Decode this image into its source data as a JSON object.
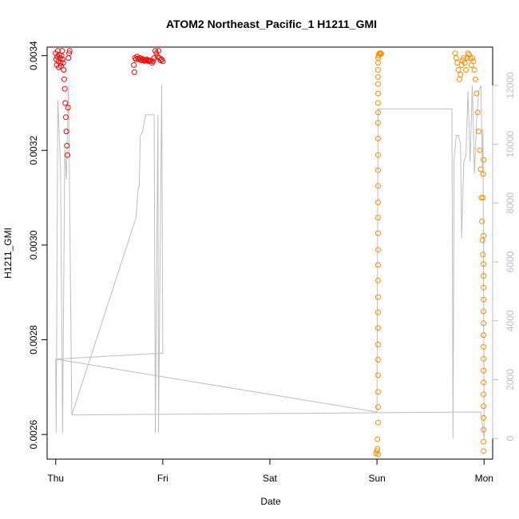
{
  "chart_data": {
    "type": "scatter",
    "title": "ATOM2 Northeast_Pacific_1 H1211_GMI",
    "xlabel": "Date",
    "ylabel": "H1211_GMI",
    "x_ticks": [
      {
        "label": "Thu",
        "day": 0
      },
      {
        "label": "Fri",
        "day": 1
      },
      {
        "label": "Sat",
        "day": 2
      },
      {
        "label": "Sun",
        "day": 3
      },
      {
        "label": "Mon",
        "day": 4
      }
    ],
    "xlim_days": [
      -0.08,
      4.08
    ],
    "ylim": [
      0.002548,
      0.003418
    ],
    "y_ticks": [
      0.0026,
      0.0028,
      0.003,
      0.0032,
      0.0034
    ],
    "y_tick_labels": [
      "0.0026",
      "0.0028",
      "0.0030",
      "0.0032",
      "0.0034"
    ],
    "y2lim": [
      -700,
      13300
    ],
    "y2_ticks": [
      0,
      2000,
      4000,
      6000,
      8000,
      10000,
      12000
    ],
    "y2_tick_labels": [
      "0",
      "2000",
      "4000",
      "6000",
      "8000",
      "10000",
      "12000"
    ],
    "colors": {
      "series1": "#ff0000",
      "series2": "#ff8c00",
      "altitude": "#bebebe",
      "axis": "#000000"
    },
    "series": [
      {
        "color": "#ff0000",
        "points": [
          [
            0.0,
            0.003405
          ],
          [
            0.005,
            0.003392
          ],
          [
            0.01,
            0.00338
          ],
          [
            0.015,
            0.003398
          ],
          [
            0.02,
            0.00341
          ],
          [
            0.025,
            0.003388
          ],
          [
            0.03,
            0.003375
          ],
          [
            0.035,
            0.003402
          ],
          [
            0.04,
            0.003395
          ],
          [
            0.045,
            0.003384
          ],
          [
            0.05,
            0.003378
          ],
          [
            0.055,
            0.0034
          ],
          [
            0.06,
            0.00341
          ],
          [
            0.065,
            0.003392
          ],
          [
            0.07,
            0.003385
          ],
          [
            0.075,
            0.00337
          ],
          [
            0.08,
            0.00335
          ],
          [
            0.085,
            0.00333
          ],
          [
            0.09,
            0.0033
          ],
          [
            0.095,
            0.00327
          ],
          [
            0.1,
            0.00324
          ],
          [
            0.105,
            0.00321
          ],
          [
            0.11,
            0.00319
          ],
          [
            0.115,
            0.00329
          ],
          [
            0.12,
            0.003395
          ],
          [
            0.125,
            0.003405
          ],
          [
            0.13,
            0.00341
          ],
          [
            0.73,
            0.00338
          ],
          [
            0.735,
            0.003365
          ],
          [
            0.74,
            0.003395
          ],
          [
            0.75,
            0.003392
          ],
          [
            0.76,
            0.003398
          ],
          [
            0.77,
            0.003394
          ],
          [
            0.78,
            0.003392
          ],
          [
            0.79,
            0.003395
          ],
          [
            0.8,
            0.00339
          ],
          [
            0.81,
            0.003393
          ],
          [
            0.82,
            0.003391
          ],
          [
            0.83,
            0.003389
          ],
          [
            0.84,
            0.00339
          ],
          [
            0.85,
            0.003392
          ],
          [
            0.86,
            0.00339
          ],
          [
            0.87,
            0.003388
          ],
          [
            0.88,
            0.00339
          ],
          [
            0.89,
            0.003389
          ],
          [
            0.9,
            0.003385
          ],
          [
            0.91,
            0.003388
          ],
          [
            0.92,
            0.003395
          ],
          [
            0.93,
            0.00341
          ],
          [
            0.94,
            0.003405
          ],
          [
            0.95,
            0.003398
          ],
          [
            0.96,
            0.00341
          ],
          [
            0.97,
            0.003395
          ],
          [
            0.98,
            0.00339
          ],
          [
            0.99,
            0.003392
          ],
          [
            1.0,
            0.003388
          ]
        ]
      },
      {
        "color": "#ff8c00",
        "points": [
          [
            2.99,
            0.00256
          ],
          [
            3.0,
            0.002565
          ],
          [
            3.005,
            0.00257
          ],
          [
            3.01,
            0.002558
          ],
          [
            3.005,
            0.00259
          ],
          [
            3.01,
            0.002625
          ],
          [
            3.01,
            0.002658
          ],
          [
            3.01,
            0.00269
          ],
          [
            3.01,
            0.002725
          ],
          [
            3.01,
            0.002758
          ],
          [
            3.01,
            0.00279
          ],
          [
            3.01,
            0.002825
          ],
          [
            3.01,
            0.002858
          ],
          [
            3.01,
            0.00289
          ],
          [
            3.01,
            0.002925
          ],
          [
            3.01,
            0.002958
          ],
          [
            3.01,
            0.00299
          ],
          [
            3.01,
            0.003025
          ],
          [
            3.01,
            0.003058
          ],
          [
            3.01,
            0.00309
          ],
          [
            3.01,
            0.003125
          ],
          [
            3.01,
            0.003158
          ],
          [
            3.01,
            0.00319
          ],
          [
            3.01,
            0.003225
          ],
          [
            3.01,
            0.003258
          ],
          [
            3.01,
            0.00328
          ],
          [
            3.01,
            0.0033
          ],
          [
            3.01,
            0.00332
          ],
          [
            3.01,
            0.00334
          ],
          [
            3.01,
            0.003355
          ],
          [
            3.01,
            0.00337
          ],
          [
            3.01,
            0.003385
          ],
          [
            3.01,
            0.003395
          ],
          [
            3.015,
            0.0034
          ],
          [
            3.02,
            0.003404
          ],
          [
            3.025,
            0.003405
          ],
          [
            3.03,
            0.003403
          ],
          [
            3.035,
            0.003405
          ],
          [
            3.04,
            0.003404
          ],
          [
            3.73,
            0.003405
          ],
          [
            3.74,
            0.003395
          ],
          [
            3.75,
            0.003385
          ],
          [
            3.76,
            0.00337
          ],
          [
            3.77,
            0.00335
          ],
          [
            3.78,
            0.00336
          ],
          [
            3.79,
            0.00338
          ],
          [
            3.8,
            0.00339
          ],
          [
            3.81,
            0.003395
          ],
          [
            3.82,
            0.003385
          ],
          [
            3.83,
            0.00337
          ],
          [
            3.84,
            0.003395
          ],
          [
            3.85,
            0.003405
          ],
          [
            3.86,
            0.003402
          ],
          [
            3.87,
            0.003394
          ],
          [
            3.88,
            0.00338
          ],
          [
            3.89,
            0.003395
          ],
          [
            3.9,
            0.003388
          ],
          [
            3.91,
            0.00337
          ],
          [
            3.92,
            0.00335
          ],
          [
            3.93,
            0.00332
          ],
          [
            3.94,
            0.00328
          ],
          [
            3.95,
            0.00324
          ],
          [
            3.96,
            0.0032
          ],
          [
            3.97,
            0.00316
          ],
          [
            3.975,
            0.0031
          ],
          [
            3.98,
            0.00305
          ],
          [
            3.985,
            0.00301
          ],
          [
            3.99,
            0.00298
          ],
          [
            3.995,
            0.00302
          ],
          [
            3.99,
            0.0031
          ],
          [
            3.992,
            0.00315
          ],
          [
            3.995,
            0.00318
          ],
          [
            3.995,
            0.00296
          ],
          [
            3.995,
            0.002935
          ],
          [
            3.995,
            0.00291
          ],
          [
            3.995,
            0.002885
          ],
          [
            3.995,
            0.00286
          ],
          [
            3.995,
            0.002835
          ],
          [
            3.995,
            0.00281
          ],
          [
            3.995,
            0.002785
          ],
          [
            3.995,
            0.00276
          ],
          [
            3.995,
            0.002735
          ],
          [
            3.995,
            0.00271
          ],
          [
            3.995,
            0.002685
          ],
          [
            3.995,
            0.00266
          ],
          [
            3.995,
            0.002635
          ],
          [
            3.995,
            0.00261
          ],
          [
            3.995,
            0.002585
          ],
          [
            3.995,
            0.002565
          ]
        ]
      }
    ],
    "altitude_series": {
      "color": "#bebebe",
      "points": [
        [
          0.0,
          2700
        ],
        [
          0.005,
          200
        ],
        [
          0.02,
          11500
        ],
        [
          0.045,
          9200
        ],
        [
          0.065,
          200
        ],
        [
          0.085,
          9800
        ],
        [
          0.1,
          8800
        ],
        [
          0.12,
          12000
        ],
        [
          0.15,
          800
        ],
        [
          0.75,
          7500
        ],
        [
          0.77,
          8500
        ],
        [
          0.78,
          8600
        ],
        [
          0.79,
          10300
        ],
        [
          0.81,
          10400
        ],
        [
          0.84,
          11000
        ],
        [
          0.92,
          11000
        ],
        [
          0.93,
          200
        ],
        [
          0.955,
          11000
        ],
        [
          0.96,
          200
        ],
        [
          0.99,
          12000
        ],
        [
          1.0,
          2900
        ],
        [
          0.0,
          2700
        ],
        [
          3.0,
          900
        ],
        [
          3.01,
          11200
        ],
        [
          3.7,
          11200
        ],
        [
          3.71,
          0
        ],
        [
          3.72,
          9500
        ],
        [
          3.74,
          10300
        ],
        [
          3.76,
          10300
        ],
        [
          3.78,
          10000
        ],
        [
          3.79,
          6800
        ],
        [
          3.81,
          9400
        ],
        [
          3.83,
          9600
        ],
        [
          3.85,
          11800
        ],
        [
          3.87,
          9400
        ],
        [
          3.89,
          12000
        ],
        [
          3.91,
          9000
        ],
        [
          3.93,
          10800
        ],
        [
          3.95,
          11800
        ],
        [
          3.97,
          12000
        ],
        [
          3.985,
          9200
        ],
        [
          3.99,
          10500
        ],
        [
          4.0,
          0
        ],
        [
          3.97,
          900
        ],
        [
          0.15,
          800
        ]
      ]
    }
  }
}
